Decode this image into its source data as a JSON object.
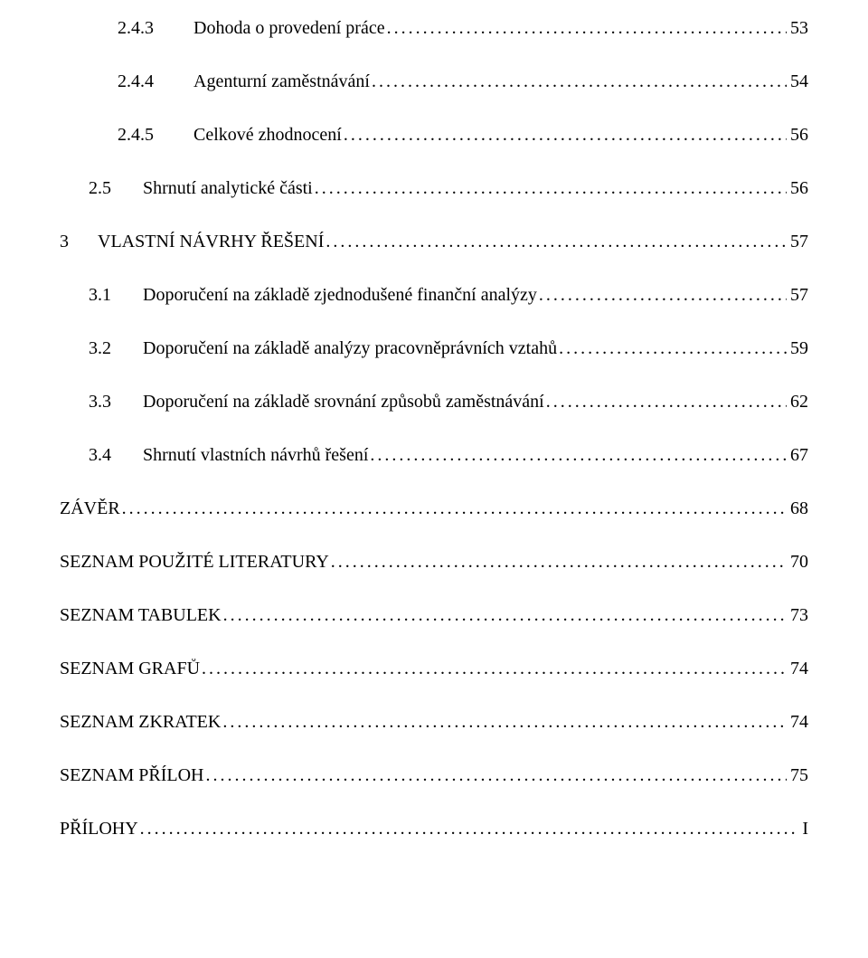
{
  "typography": {
    "font_family": "Times New Roman",
    "font_size_pt": 12,
    "text_color": "#000000",
    "background_color": "#ffffff",
    "leader_char": "."
  },
  "toc": [
    {
      "level": 3,
      "number": "2.4.3",
      "title": "Dohoda o provedení práce",
      "page": "53"
    },
    {
      "level": 3,
      "number": "2.4.4",
      "title": "Agenturní zaměstnávání",
      "page": "54"
    },
    {
      "level": 3,
      "number": "2.4.5",
      "title": "Celkové zhodnocení",
      "page": "56"
    },
    {
      "level": 2,
      "number": "2.5",
      "title": "Shrnutí analytické části",
      "page": "56"
    },
    {
      "level": 1,
      "number": "3",
      "title": "VLASTNÍ NÁVRHY ŘEŠENÍ",
      "page": "57"
    },
    {
      "level": 2,
      "number": "3.1",
      "title": "Doporučení na základě zjednodušené finanční analýzy",
      "page": "57"
    },
    {
      "level": 2,
      "number": "3.2",
      "title": "Doporučení na základě analýzy pracovněprávních vztahů",
      "page": "59"
    },
    {
      "level": 2,
      "number": "3.3",
      "title": "Doporučení na základě srovnání způsobů zaměstnávání",
      "page": "62"
    },
    {
      "level": 2,
      "number": "3.4",
      "title": "Shrnutí vlastních návrhů řešení",
      "page": "67"
    },
    {
      "level": 1,
      "number": "",
      "title": "ZÁVĚR",
      "page": "68"
    },
    {
      "level": 1,
      "number": "",
      "title": "SEZNAM POUŽITÉ LITERATURY",
      "page": "70"
    },
    {
      "level": 1,
      "number": "",
      "title": "SEZNAM TABULEK",
      "page": "73"
    },
    {
      "level": 1,
      "number": "",
      "title": "SEZNAM GRAFŮ",
      "page": "74"
    },
    {
      "level": 1,
      "number": "",
      "title": "SEZNAM ZKRATEK",
      "page": "74"
    },
    {
      "level": 1,
      "number": "",
      "title": "SEZNAM PŘÍLOH",
      "page": "75"
    },
    {
      "level": 1,
      "number": "",
      "title": "PŘÍLOHY",
      "page": "I"
    }
  ]
}
